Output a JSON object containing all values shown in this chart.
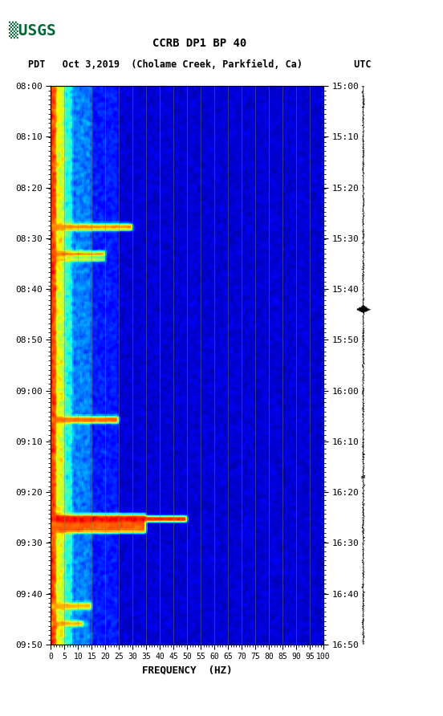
{
  "title_line1": "CCRB DP1 BP 40",
  "title_line2": "PDT   Oct 3,2019  (Cholame Creek, Parkfield, Ca)         UTC",
  "xlabel": "FREQUENCY  (HZ)",
  "freq_ticks": [
    0,
    5,
    10,
    15,
    20,
    25,
    30,
    35,
    40,
    45,
    50,
    55,
    60,
    65,
    70,
    75,
    80,
    85,
    90,
    95,
    100
  ],
  "time_left_labels": [
    "08:00",
    "08:10",
    "08:20",
    "08:30",
    "08:40",
    "08:50",
    "09:00",
    "09:10",
    "09:20",
    "09:30",
    "09:40",
    "09:50"
  ],
  "time_right_labels": [
    "15:00",
    "15:10",
    "15:20",
    "15:30",
    "15:40",
    "15:50",
    "16:00",
    "16:10",
    "16:20",
    "16:30",
    "16:40",
    "16:50"
  ],
  "freq_min": 0,
  "freq_max": 100,
  "time_steps": 120,
  "freq_steps": 200,
  "bg_color": "#ffffff",
  "spectrogram_bg": "#0000aa",
  "colormap": "jet",
  "vertical_grid_lines": [
    5,
    10,
    15,
    20,
    25,
    30,
    35,
    40,
    45,
    50,
    55,
    60,
    65,
    70,
    75,
    80,
    85,
    90,
    95,
    100
  ],
  "vertical_grid_color": "#888844",
  "usgs_logo_color": "#006633"
}
